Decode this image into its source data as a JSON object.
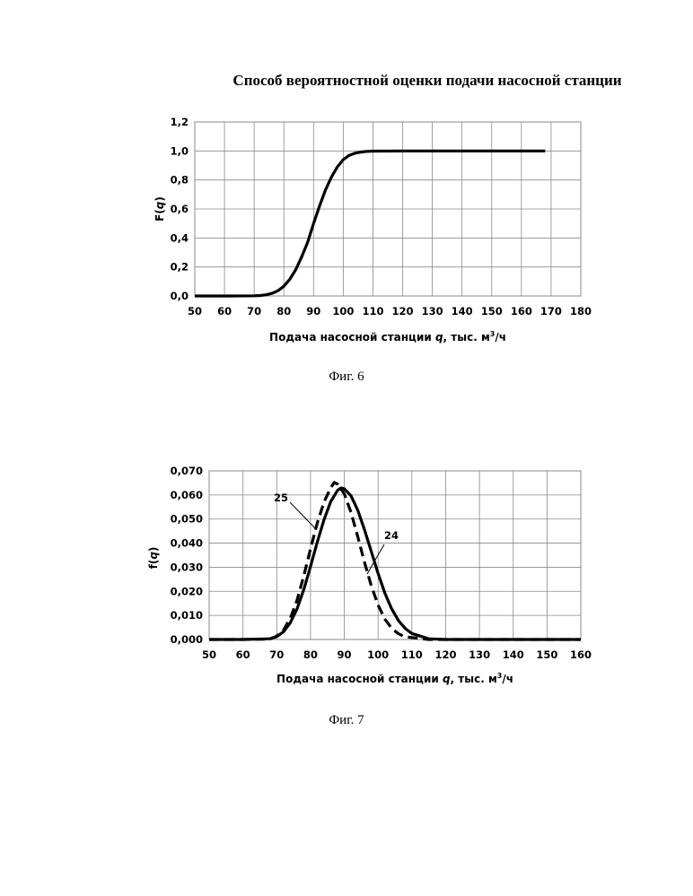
{
  "page": {
    "title": "Способ вероятностной оценки подачи насосной станции"
  },
  "figures": [
    {
      "caption": "Фиг. 6",
      "xlabel_parts": [
        "Подача насосной станции ",
        "q",
        ", тыс. м",
        "3",
        "/ч"
      ],
      "ylabel_parts": [
        "F(",
        "q",
        ")"
      ]
    },
    {
      "caption": "Фиг. 7",
      "xlabel_parts": [
        "Подача насосной станции ",
        "q",
        ", тыс. м",
        "3",
        "/ч"
      ],
      "ylabel_parts": [
        "f(",
        "q",
        ")"
      ]
    }
  ],
  "chart_data": [
    {
      "type": "line",
      "title": "",
      "xlabel": "Подача насосной станции q, тыс. м3/ч",
      "ylabel": "F(q)",
      "xlim": [
        50,
        180
      ],
      "ylim": [
        0,
        1.2
      ],
      "xticks": [
        "50",
        "60",
        "70",
        "80",
        "90",
        "100",
        "110",
        "120",
        "130",
        "140",
        "150",
        "160",
        "170",
        "180"
      ],
      "yticks": [
        "0,0",
        "0,2",
        "0,4",
        "0,6",
        "0,8",
        "1,0",
        "1,2"
      ],
      "grid": true,
      "color": "#000000",
      "series": [
        {
          "style": "solid",
          "x": [
            50,
            60,
            70,
            72,
            74,
            76,
            78,
            80,
            82,
            84,
            86,
            88,
            90,
            92,
            94,
            96,
            98,
            100,
            102,
            104,
            106,
            108,
            110,
            120,
            130,
            140,
            150,
            160,
            168
          ],
          "y": [
            0,
            0,
            0.001,
            0.003,
            0.008,
            0.018,
            0.036,
            0.067,
            0.115,
            0.182,
            0.27,
            0.37,
            0.5,
            0.62,
            0.73,
            0.82,
            0.89,
            0.94,
            0.97,
            0.985,
            0.993,
            0.997,
            0.999,
            1,
            1,
            1,
            1,
            1,
            1
          ]
        }
      ]
    },
    {
      "type": "line",
      "title": "",
      "xlabel": "Подача насосной станции q, тыс. м3/ч",
      "ylabel": "f(q)",
      "xlim": [
        50,
        160
      ],
      "ylim": [
        0,
        0.07
      ],
      "xticks": [
        "50",
        "60",
        "70",
        "80",
        "90",
        "100",
        "110",
        "120",
        "130",
        "140",
        "150",
        "160"
      ],
      "yticks": [
        "0,000",
        "0,010",
        "0,020",
        "0,030",
        "0,040",
        "0,050",
        "0,060",
        "0,070"
      ],
      "grid": true,
      "color": "#000000",
      "series": [
        {
          "name": "24",
          "style": "solid",
          "x": [
            50,
            60,
            68,
            70,
            72,
            74,
            76,
            78,
            80,
            82,
            84,
            86,
            88,
            89,
            90,
            92,
            94,
            96,
            98,
            100,
            102,
            104,
            106,
            108,
            110,
            115,
            120,
            130,
            140,
            150,
            160
          ],
          "y": [
            0,
            0,
            0.0003,
            0.0012,
            0.0032,
            0.0069,
            0.0127,
            0.0207,
            0.0303,
            0.0404,
            0.0498,
            0.0573,
            0.0619,
            0.0629,
            0.0626,
            0.0596,
            0.0536,
            0.0455,
            0.0364,
            0.0274,
            0.0193,
            0.0128,
            0.0079,
            0.0046,
            0.0025,
            0.0003,
            0,
            0,
            0,
            0,
            0
          ]
        },
        {
          "name": "25",
          "style": "dashed",
          "x": [
            50,
            60,
            68,
            70,
            72,
            74,
            76,
            78,
            80,
            82,
            84,
            86,
            87,
            88,
            90,
            92,
            94,
            96,
            98,
            100,
            102,
            104,
            106,
            108,
            115,
            120,
            130,
            140,
            150,
            160
          ],
          "y": [
            0,
            0,
            0.0002,
            0.0014,
            0.0039,
            0.0087,
            0.0163,
            0.0264,
            0.0376,
            0.0483,
            0.0571,
            0.063,
            0.0652,
            0.0645,
            0.0605,
            0.0527,
            0.0426,
            0.032,
            0.0222,
            0.0143,
            0.0085,
            0.0047,
            0.0024,
            0.0011,
            0,
            0,
            0,
            0,
            0,
            0
          ]
        }
      ]
    }
  ]
}
